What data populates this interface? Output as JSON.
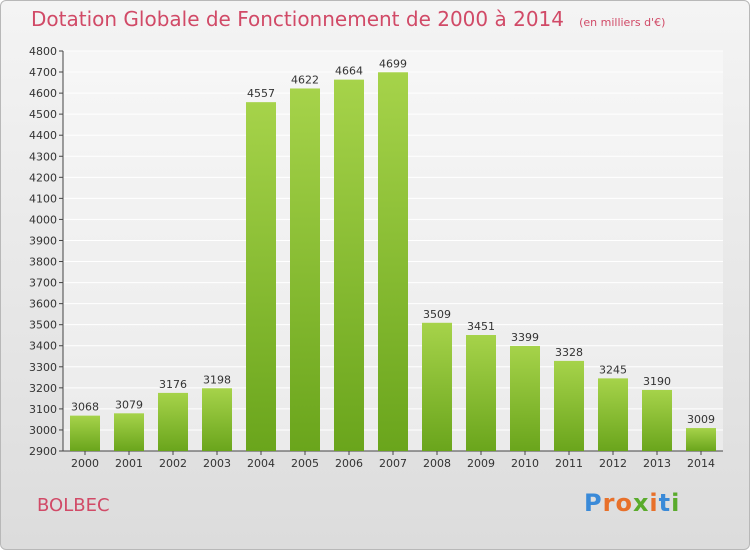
{
  "chart_data": {
    "type": "bar",
    "title": "Dotation Globale de Fonctionnement de 2000 à 2014",
    "subtitle": "(en milliers d'€)",
    "categories": [
      "2000",
      "2001",
      "2002",
      "2003",
      "2004",
      "2005",
      "2006",
      "2007",
      "2008",
      "2009",
      "2010",
      "2011",
      "2012",
      "2013",
      "2014"
    ],
    "values": [
      3068,
      3079,
      3176,
      3198,
      4557,
      4622,
      4664,
      4699,
      3509,
      3451,
      3399,
      3328,
      3245,
      3190,
      3009
    ],
    "ylim": [
      2900,
      4800
    ],
    "ytick_step": 100,
    "grid": true,
    "colors": {
      "bar_light": "#a6d34a",
      "bar_dark": "#6aa51c",
      "accent": "#d14a67"
    }
  },
  "footer": {
    "commune": "BOLBEC"
  },
  "logo": {
    "letters": [
      "P",
      "r",
      "o",
      "x",
      "i",
      "t",
      "i"
    ],
    "colors": [
      "#3a8ad8",
      "#e8702a",
      "#e8702a",
      "#5aab2c",
      "#e8702a",
      "#3a8ad8",
      "#5aab2c"
    ]
  }
}
